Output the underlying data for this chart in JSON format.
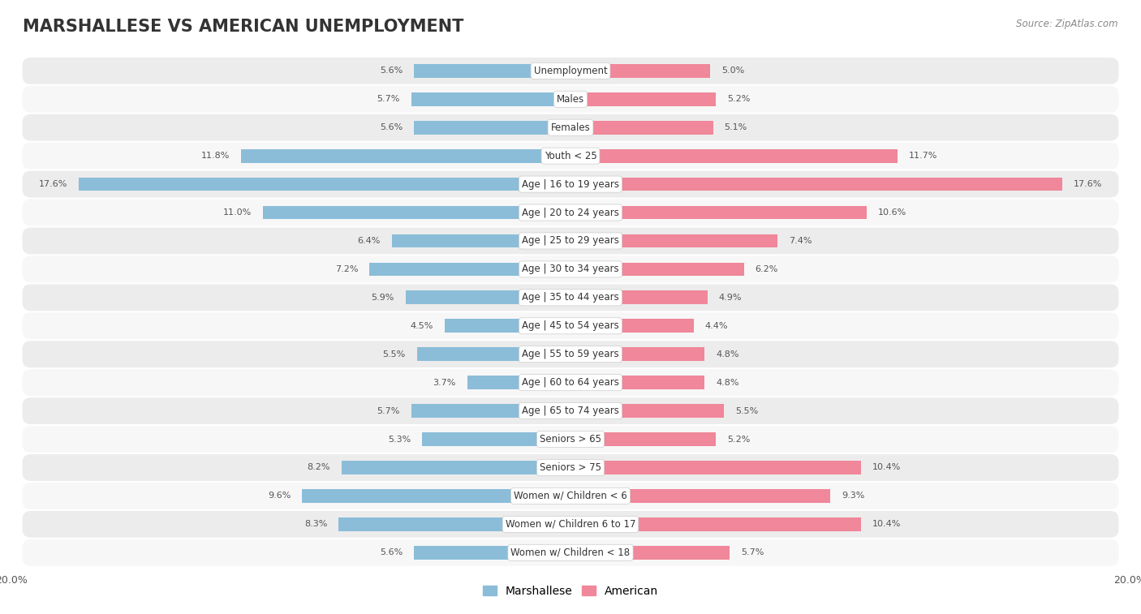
{
  "title": "MARSHALLESE VS AMERICAN UNEMPLOYMENT",
  "source": "Source: ZipAtlas.com",
  "categories": [
    "Unemployment",
    "Males",
    "Females",
    "Youth < 25",
    "Age | 16 to 19 years",
    "Age | 20 to 24 years",
    "Age | 25 to 29 years",
    "Age | 30 to 34 years",
    "Age | 35 to 44 years",
    "Age | 45 to 54 years",
    "Age | 55 to 59 years",
    "Age | 60 to 64 years",
    "Age | 65 to 74 years",
    "Seniors > 65",
    "Seniors > 75",
    "Women w/ Children < 6",
    "Women w/ Children 6 to 17",
    "Women w/ Children < 18"
  ],
  "marshallese": [
    5.6,
    5.7,
    5.6,
    11.8,
    17.6,
    11.0,
    6.4,
    7.2,
    5.9,
    4.5,
    5.5,
    3.7,
    5.7,
    5.3,
    8.2,
    9.6,
    8.3,
    5.6
  ],
  "american": [
    5.0,
    5.2,
    5.1,
    11.7,
    17.6,
    10.6,
    7.4,
    6.2,
    4.9,
    4.4,
    4.8,
    4.8,
    5.5,
    5.2,
    10.4,
    9.3,
    10.4,
    5.7
  ],
  "marshallese_color": "#8bbdd9",
  "american_color": "#f0879a",
  "bar_height": 0.48,
  "xlim": 20.0,
  "background_color": "#ffffff",
  "row_colors": [
    "#ececec",
    "#f7f7f7"
  ],
  "title_fontsize": 15,
  "label_fontsize": 8.5,
  "value_fontsize": 8.0,
  "legend_fontsize": 10,
  "row_rounding": 0.3
}
